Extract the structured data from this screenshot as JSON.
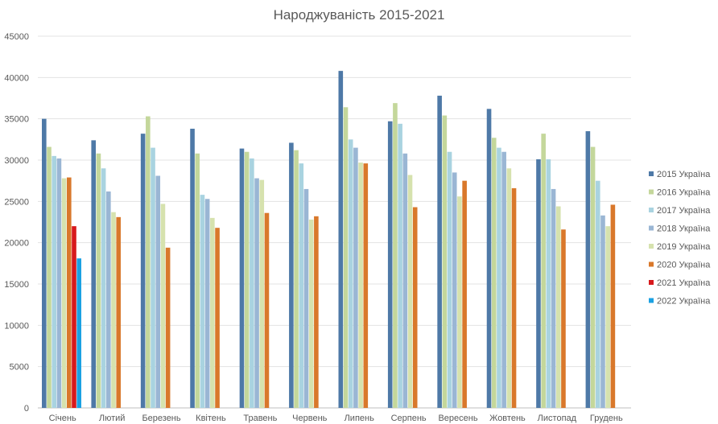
{
  "chart_data": {
    "type": "bar",
    "title": "Народжуваність 2015-2021",
    "xlabel": "",
    "ylabel": "",
    "ylim": [
      0,
      45000
    ],
    "yticks": [
      0,
      5000,
      10000,
      15000,
      20000,
      25000,
      30000,
      35000,
      40000,
      45000
    ],
    "grid": true,
    "legend_position": "right",
    "categories": [
      "Січень",
      "Лютий",
      "Березень",
      "Квітень",
      "Травень",
      "Червень",
      "Липень",
      "Серпень",
      "Вересень",
      "Жовтень",
      "Листопад",
      "Грудень"
    ],
    "series": [
      {
        "name": "2015 Україна",
        "color": "#4E79A7",
        "values": [
          35000,
          32400,
          33200,
          33800,
          31400,
          32100,
          40800,
          34700,
          37800,
          36200,
          30100,
          33500
        ]
      },
      {
        "name": "2016 Україна",
        "color": "#C4D79B",
        "values": [
          31600,
          30800,
          35300,
          30800,
          31000,
          31200,
          36400,
          36900,
          35400,
          32700,
          33200,
          31600
        ]
      },
      {
        "name": "2017 Україна",
        "color": "#A9D3E0",
        "values": [
          30500,
          29000,
          31500,
          25800,
          30200,
          29600,
          32500,
          34400,
          31000,
          31500,
          30100,
          27500
        ]
      },
      {
        "name": "2018 Україна",
        "color": "#9AB6D4",
        "values": [
          30200,
          26200,
          28100,
          25300,
          27800,
          26500,
          31500,
          30800,
          28500,
          31000,
          26500,
          23300
        ]
      },
      {
        "name": "2019 Україна",
        "color": "#D6E2AE",
        "values": [
          27800,
          23700,
          24700,
          23000,
          27600,
          22800,
          29700,
          28200,
          25600,
          29000,
          24400,
          22000
        ]
      },
      {
        "name": "2020 Україна",
        "color": "#D9782B",
        "values": [
          27900,
          23100,
          19400,
          21800,
          23600,
          23200,
          29600,
          24300,
          27500,
          26600,
          21600,
          24600
        ]
      },
      {
        "name": "2021 Україна",
        "color": "#D7191C",
        "values": [
          22000,
          null,
          null,
          null,
          null,
          null,
          null,
          null,
          null,
          null,
          null,
          null
        ]
      },
      {
        "name": "2022 Україна",
        "color": "#1BA1E2",
        "values": [
          18100,
          null,
          null,
          null,
          null,
          null,
          null,
          null,
          null,
          null,
          null,
          null
        ]
      }
    ]
  }
}
